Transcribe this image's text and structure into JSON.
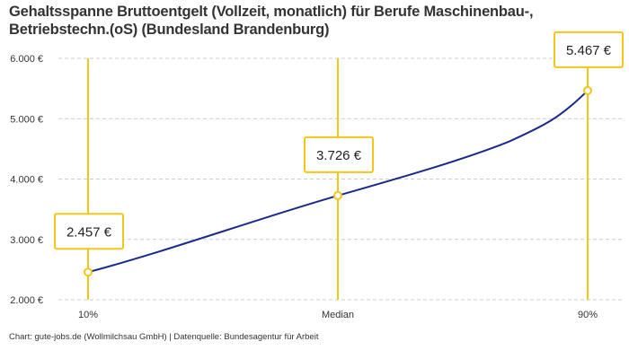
{
  "title": "Gehaltsspanne Bruttoentgelt (Vollzeit, monatlich) für Berufe Maschinenbau-, Betriebstechn.(oS) (Bundesland Brandenburg)",
  "credit": "Chart: gute-jobs.de (Wollmilchsau GmbH) | Datenquelle: Bundesagentur für Arbeit",
  "colors": {
    "line": "#1a2a8c",
    "accent": "#f5c518",
    "grid": "#cccccc"
  },
  "chart_data": {
    "type": "line",
    "categories": [
      "10%",
      "Median",
      "90%"
    ],
    "values": [
      2457,
      3726,
      5467
    ],
    "data_labels": [
      "2.457 €",
      "3.726 €",
      "5.467 €"
    ],
    "yticks": [
      2000,
      3000,
      4000,
      5000,
      6000
    ],
    "ytick_labels": [
      "2.000 €",
      "3.000 €",
      "4.000 €",
      "5.000 €",
      "6.000 €"
    ],
    "ylim": [
      2000,
      6000
    ],
    "grid": "horizontal-dashed"
  }
}
